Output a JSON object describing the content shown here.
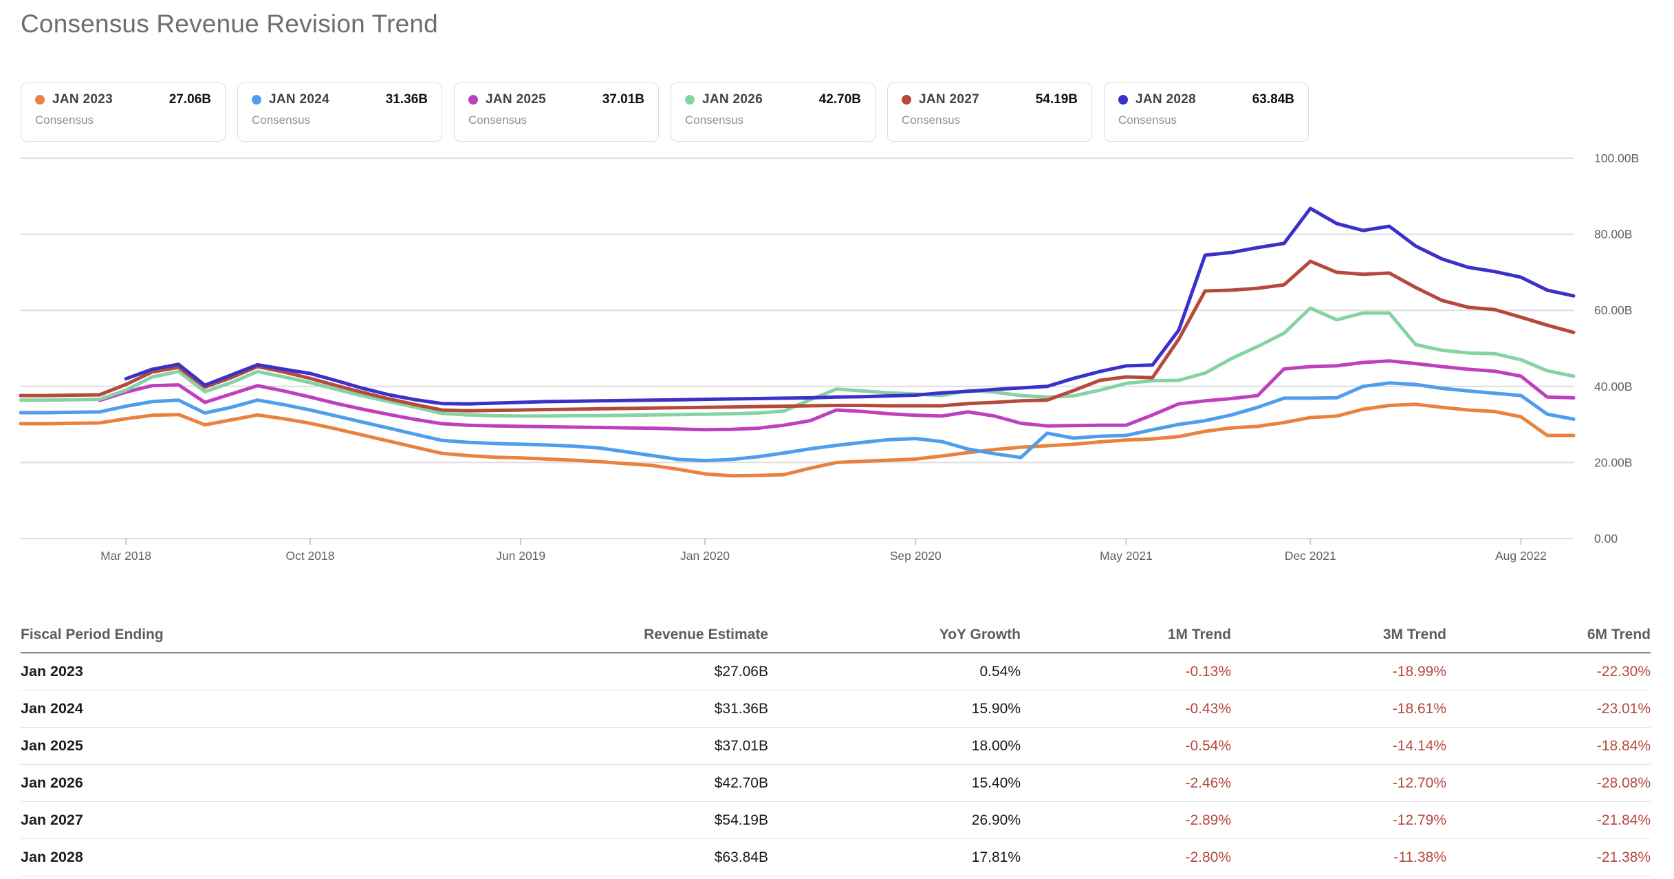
{
  "title": "Consensus Revenue Revision Trend",
  "colors": {
    "jan2023": "#e8823c",
    "jan2024": "#4f9ded",
    "jan2025": "#bf40bf",
    "jan2026": "#85d3a4",
    "jan2027": "#b5493b",
    "jan2028": "#3b30c9",
    "gridline": "#dedede",
    "axis_text": "#5f6368",
    "tick": "#c9c9c9",
    "trend_negative": "#b5473d"
  },
  "legend": [
    {
      "label": "JAN 2023",
      "value": "27.06B",
      "sublabel": "Consensus",
      "color": "#e8823c"
    },
    {
      "label": "JAN 2024",
      "value": "31.36B",
      "sublabel": "Consensus",
      "color": "#4f9ded"
    },
    {
      "label": "JAN 2025",
      "value": "37.01B",
      "sublabel": "Consensus",
      "color": "#bf40bf"
    },
    {
      "label": "JAN 2026",
      "value": "42.70B",
      "sublabel": "Consensus",
      "color": "#85d3a4"
    },
    {
      "label": "JAN 2027",
      "value": "54.19B",
      "sublabel": "Consensus",
      "color": "#b5493b"
    },
    {
      "label": "JAN 2028",
      "value": "63.84B",
      "sublabel": "Consensus",
      "color": "#3b30c9"
    }
  ],
  "chart_data": {
    "type": "line",
    "title": "Consensus Revenue Revision Trend",
    "ylabel": "",
    "xlabel": "",
    "ylim": [
      0,
      100
    ],
    "grid": "horizontal",
    "legend_position": "top",
    "yticks": [
      {
        "value": 100,
        "label": "100.00B"
      },
      {
        "value": 80,
        "label": "80.00B"
      },
      {
        "value": 60,
        "label": "60.00B"
      },
      {
        "value": 40,
        "label": "40.00B"
      },
      {
        "value": 20,
        "label": "20.00B"
      },
      {
        "value": 0,
        "label": "0.00"
      }
    ],
    "x": [
      "Nov 2017",
      "Dec 2017",
      "Jan 2018",
      "Feb 2018",
      "Mar 2018",
      "Apr 2018",
      "May 2018",
      "Jun 2018",
      "Jul 2018",
      "Aug 2018",
      "Sep 2018",
      "Oct 2018",
      "Nov 2018",
      "Dec 2018",
      "Jan 2019",
      "Feb 2019",
      "Mar 2019",
      "Apr 2019",
      "May 2019",
      "Jun 2019",
      "Jul 2019",
      "Aug 2019",
      "Sep 2019",
      "Oct 2019",
      "Nov 2019",
      "Dec 2019",
      "Jan 2020",
      "Feb 2020",
      "Mar 2020",
      "Apr 2020",
      "May 2020",
      "Jun 2020",
      "Jul 2020",
      "Aug 2020",
      "Sep 2020",
      "Oct 2020",
      "Nov 2020",
      "Dec 2020",
      "Jan 2021",
      "Feb 2021",
      "Mar 2021",
      "Apr 2021",
      "May 2021",
      "Jun 2021",
      "Jul 2021",
      "Aug 2021",
      "Sep 2021",
      "Oct 2021",
      "Nov 2021",
      "Dec 2021",
      "Jan 2022",
      "Feb 2022",
      "Mar 2022",
      "Apr 2022",
      "May 2022",
      "Jun 2022",
      "Jul 2022",
      "Aug 2022",
      "Sep 2022",
      "Oct 2022"
    ],
    "xticks": [
      {
        "index": 4,
        "label": "Mar 2018"
      },
      {
        "index": 11,
        "label": "Oct 2018"
      },
      {
        "index": 19,
        "label": "Jun 2019"
      },
      {
        "index": 26,
        "label": "Jan 2020"
      },
      {
        "index": 34,
        "label": "Sep 2020"
      },
      {
        "index": 42,
        "label": "May 2021"
      },
      {
        "index": 49,
        "label": "Dec 2021"
      },
      {
        "index": 57,
        "label": "Aug 2022"
      }
    ],
    "series": [
      {
        "name": "JAN 2023 Consensus",
        "color": "#e8823c",
        "values": [
          30.2,
          30.2,
          30.3,
          30.4,
          31.5,
          32.4,
          32.6,
          29.9,
          31.2,
          32.5,
          31.5,
          30.3,
          28.8,
          27.2,
          25.6,
          24.0,
          22.4,
          21.8,
          21.4,
          21.2,
          20.9,
          20.6,
          20.2,
          19.7,
          19.2,
          18.2,
          17.0,
          16.5,
          16.6,
          16.8,
          18.5,
          20.0,
          20.3,
          20.6,
          20.9,
          21.7,
          22.6,
          23.4,
          24.0,
          24.4,
          24.8,
          25.4,
          25.9,
          26.2,
          26.8,
          28.2,
          29.1,
          29.5,
          30.5,
          31.8,
          32.2,
          34.0,
          35.0,
          35.3,
          34.5,
          33.8,
          33.4,
          32.0,
          27.1,
          27.1
        ]
      },
      {
        "name": "JAN 2024 Consensus",
        "color": "#4f9ded",
        "values": [
          33.1,
          33.1,
          33.2,
          33.3,
          34.8,
          36.0,
          36.4,
          33.0,
          34.5,
          36.4,
          35.2,
          33.8,
          32.2,
          30.6,
          29.0,
          27.4,
          25.8,
          25.3,
          25.0,
          24.8,
          24.6,
          24.3,
          23.8,
          22.8,
          21.8,
          20.8,
          20.5,
          20.8,
          21.5,
          22.5,
          23.6,
          24.5,
          25.3,
          26.0,
          26.3,
          25.5,
          23.5,
          22.3,
          21.3,
          27.7,
          26.4,
          26.9,
          27.1,
          28.6,
          30.0,
          31.0,
          32.5,
          34.5,
          36.9,
          36.9,
          37.0,
          40.0,
          40.9,
          40.5,
          39.5,
          38.8,
          38.2,
          37.6,
          32.7,
          31.4
        ]
      },
      {
        "name": "JAN 2025 Consensus",
        "color": "#bf40bf",
        "values": [
          null,
          null,
          null,
          36.3,
          38.5,
          40.2,
          40.4,
          35.8,
          38.0,
          40.2,
          38.8,
          37.2,
          35.5,
          34.0,
          32.6,
          31.3,
          30.2,
          29.8,
          29.6,
          29.5,
          29.4,
          29.3,
          29.2,
          29.1,
          29.0,
          28.8,
          28.6,
          28.7,
          29.0,
          29.8,
          31.0,
          33.8,
          33.4,
          32.8,
          32.4,
          32.2,
          33.3,
          32.2,
          30.3,
          29.6,
          29.7,
          29.8,
          29.8,
          32.5,
          35.4,
          36.2,
          36.8,
          37.6,
          44.6,
          45.2,
          45.4,
          46.3,
          46.7,
          46.0,
          45.2,
          44.5,
          44.0,
          42.7,
          37.2,
          37.0
        ]
      },
      {
        "name": "JAN 2026 Consensus",
        "color": "#85d3a4",
        "values": [
          36.4,
          36.4,
          36.5,
          36.6,
          39.0,
          42.5,
          43.9,
          38.6,
          41.0,
          43.9,
          42.5,
          41.0,
          39.2,
          37.5,
          36.0,
          34.5,
          32.9,
          32.5,
          32.3,
          32.2,
          32.2,
          32.3,
          32.3,
          32.4,
          32.5,
          32.6,
          32.7,
          32.8,
          33.0,
          33.5,
          36.5,
          39.3,
          38.8,
          38.3,
          38.0,
          37.6,
          38.9,
          38.5,
          37.6,
          37.2,
          37.5,
          39.0,
          40.8,
          41.5,
          41.6,
          43.5,
          47.3,
          50.5,
          54.0,
          60.6,
          57.5,
          59.3,
          59.3,
          51.0,
          49.5,
          48.8,
          48.6,
          47.0,
          44.1,
          42.7
        ]
      },
      {
        "name": "JAN 2027 Consensus",
        "color": "#b5493b",
        "values": [
          37.6,
          37.6,
          37.7,
          37.8,
          40.5,
          43.8,
          45.0,
          39.8,
          42.3,
          45.2,
          43.8,
          42.1,
          40.2,
          38.4,
          36.7,
          35.2,
          33.8,
          33.6,
          33.7,
          33.8,
          33.9,
          34.0,
          34.1,
          34.2,
          34.3,
          34.4,
          34.5,
          34.6,
          34.7,
          34.8,
          34.9,
          35.0,
          35.0,
          34.9,
          34.9,
          34.9,
          35.5,
          35.8,
          36.2,
          36.4,
          38.9,
          41.6,
          42.5,
          42.3,
          52.4,
          65.1,
          65.3,
          65.8,
          66.7,
          72.9,
          70.0,
          69.5,
          69.8,
          66.0,
          62.6,
          60.8,
          60.2,
          58.2,
          56.1,
          54.2
        ]
      },
      {
        "name": "JAN 2028 Consensus",
        "color": "#3b30c9",
        "values": [
          null,
          null,
          null,
          null,
          42.0,
          44.5,
          45.8,
          40.3,
          43.0,
          45.7,
          44.5,
          43.4,
          41.5,
          39.5,
          37.8,
          36.5,
          35.5,
          35.4,
          35.6,
          35.8,
          36.0,
          36.1,
          36.2,
          36.3,
          36.4,
          36.5,
          36.6,
          36.7,
          36.8,
          36.9,
          37.0,
          37.2,
          37.3,
          37.5,
          37.7,
          38.3,
          38.7,
          39.2,
          39.6,
          40.0,
          42.1,
          43.9,
          45.4,
          45.6,
          54.8,
          74.5,
          75.2,
          76.5,
          77.6,
          86.8,
          82.8,
          81.0,
          82.1,
          76.9,
          73.5,
          71.3,
          70.2,
          68.7,
          65.3,
          63.8
        ]
      }
    ]
  },
  "table": {
    "columns": [
      "Fiscal Period Ending",
      "Revenue Estimate",
      "YoY Growth",
      "1M Trend",
      "3M Trend",
      "6M Trend"
    ],
    "rows": [
      {
        "period": "Jan 2023",
        "revenue": "$27.06B",
        "yoy": "0.54%",
        "m1": "-0.13%",
        "m3": "-18.99%",
        "m6": "-22.30%"
      },
      {
        "period": "Jan 2024",
        "revenue": "$31.36B",
        "yoy": "15.90%",
        "m1": "-0.43%",
        "m3": "-18.61%",
        "m6": "-23.01%"
      },
      {
        "period": "Jan 2025",
        "revenue": "$37.01B",
        "yoy": "18.00%",
        "m1": "-0.54%",
        "m3": "-14.14%",
        "m6": "-18.84%"
      },
      {
        "period": "Jan 2026",
        "revenue": "$42.70B",
        "yoy": "15.40%",
        "m1": "-2.46%",
        "m3": "-12.70%",
        "m6": "-28.08%"
      },
      {
        "period": "Jan 2027",
        "revenue": "$54.19B",
        "yoy": "26.90%",
        "m1": "-2.89%",
        "m3": "-12.79%",
        "m6": "-21.84%"
      },
      {
        "period": "Jan 2028",
        "revenue": "$63.84B",
        "yoy": "17.81%",
        "m1": "-2.80%",
        "m3": "-11.38%",
        "m6": "-21.38%"
      }
    ]
  }
}
